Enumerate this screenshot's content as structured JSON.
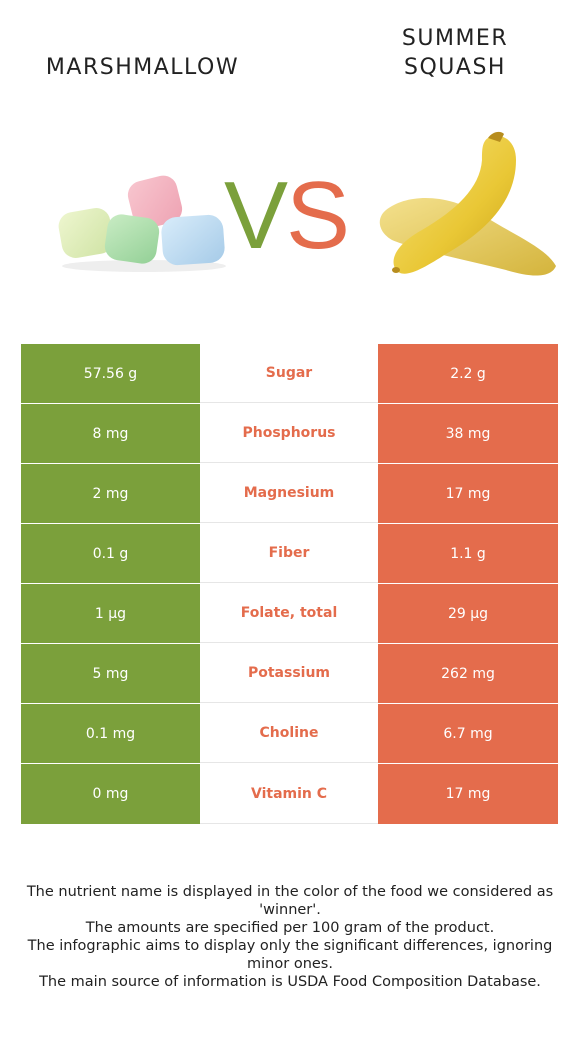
{
  "foods": {
    "left": "MARSHMALLOW",
    "right": "SUMMER\nSQUASH"
  },
  "vs": {
    "v": "V",
    "s": "S"
  },
  "colors": {
    "left_winner": "#7ba03b",
    "right_winner": "#e46c4c"
  },
  "rows": [
    {
      "nutrient": "Sugar",
      "left": "57.56 g",
      "right": "2.2 g",
      "winner": "right"
    },
    {
      "nutrient": "Phosphorus",
      "left": "8 mg",
      "right": "38 mg",
      "winner": "right"
    },
    {
      "nutrient": "Magnesium",
      "left": "2 mg",
      "right": "17 mg",
      "winner": "right"
    },
    {
      "nutrient": "Fiber",
      "left": "0.1 g",
      "right": "1.1 g",
      "winner": "right"
    },
    {
      "nutrient": "Folate, total",
      "left": "1 µg",
      "right": "29 µg",
      "winner": "right"
    },
    {
      "nutrient": "Potassium",
      "left": "5 mg",
      "right": "262 mg",
      "winner": "right"
    },
    {
      "nutrient": "Choline",
      "left": "0.1 mg",
      "right": "6.7 mg",
      "winner": "right"
    },
    {
      "nutrient": "Vitamin C",
      "left": "0 mg",
      "right": "17 mg",
      "winner": "right"
    }
  ],
  "footnote": [
    "The nutrient name is displayed in the color of the food we considered as 'winner'.",
    "The amounts are specified per 100 gram of the product.",
    "The infographic aims to display only the significant differences, ignoring minor ones.",
    "The main source of information is USDA Food Composition Database."
  ]
}
